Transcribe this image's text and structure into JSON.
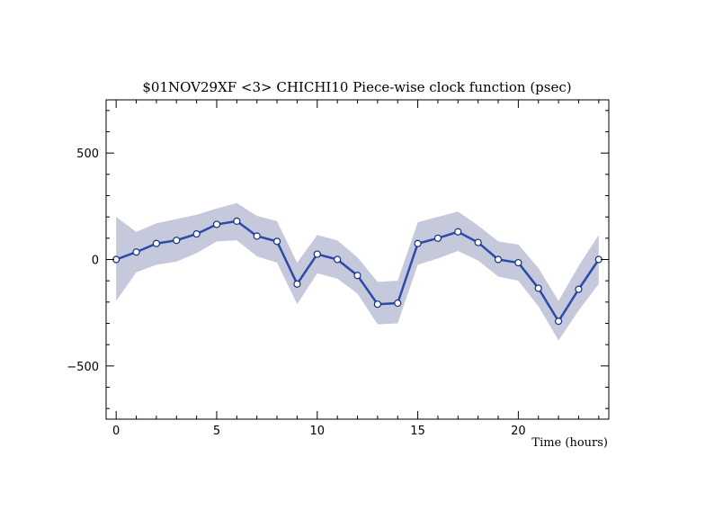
{
  "chart_data": {
    "type": "line",
    "title": "$01NOV29XF <3>  CHICHI10  Piece-wise clock function (psec)",
    "xlabel": "Time (hours)",
    "ylabel": "",
    "xlim": [
      -0.5,
      24.5
    ],
    "ylim": [
      -750,
      750
    ],
    "x_ticks": [
      0,
      5,
      10,
      15,
      20
    ],
    "y_ticks": [
      -500,
      0,
      500
    ],
    "x_tick_labels": [
      "0",
      "5",
      "10",
      "15",
      "20"
    ],
    "y_tick_labels": [
      "−500",
      "0",
      "500"
    ],
    "grid": false,
    "colors": {
      "line": "#2b4aaa",
      "band": "#c5c9db",
      "marker_fill": "#ffffff"
    },
    "series": [
      {
        "x": [
          0,
          1,
          2,
          3,
          4,
          5,
          6,
          7,
          8,
          9,
          10,
          11,
          12,
          13,
          14,
          15,
          16,
          17,
          18,
          19,
          20,
          21,
          22,
          23,
          24
        ],
        "y": [
          0,
          35,
          75,
          90,
          120,
          165,
          180,
          110,
          85,
          -115,
          25,
          0,
          -75,
          -210,
          -205,
          75,
          100,
          130,
          80,
          0,
          -15,
          -135,
          -290,
          -140,
          0
        ],
        "band_upper": [
          200,
          130,
          170,
          190,
          210,
          240,
          265,
          205,
          180,
          -15,
          115,
          90,
          10,
          -105,
          -100,
          175,
          200,
          225,
          160,
          85,
          70,
          -40,
          -195,
          -30,
          115
        ],
        "band_lower": [
          -195,
          -60,
          -25,
          -10,
          30,
          85,
          90,
          15,
          -15,
          -210,
          -65,
          -90,
          -160,
          -305,
          -300,
          -25,
          5,
          40,
          -5,
          -80,
          -100,
          -220,
          -380,
          -240,
          -115
        ]
      }
    ]
  }
}
